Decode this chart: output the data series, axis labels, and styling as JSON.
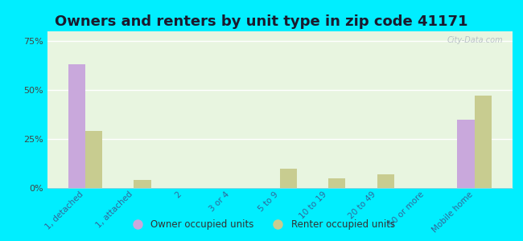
{
  "title": "Owners and renters by unit type in zip code 41171",
  "categories": [
    "1, detached",
    "1, attached",
    "2",
    "3 or 4",
    "5 to 9",
    "10 to 19",
    "20 to 49",
    "50 or more",
    "Mobile home"
  ],
  "owner_values": [
    63,
    0,
    0,
    0,
    0,
    0,
    0,
    0,
    35
  ],
  "renter_values": [
    29,
    4,
    0,
    0,
    10,
    5,
    7,
    0,
    47
  ],
  "owner_color": "#c9a8dc",
  "renter_color": "#c8cc90",
  "background_outer": "#00eeff",
  "background_plot_top": "#e8f5e0",
  "background_plot_bottom": "#f0f8e8",
  "ylim": [
    0,
    80
  ],
  "yticks": [
    0,
    25,
    50,
    75
  ],
  "ytick_labels": [
    "0%",
    "25%",
    "50%",
    "75%"
  ],
  "watermark": "City-Data.com",
  "legend_owner": "Owner occupied units",
  "legend_renter": "Renter occupied units",
  "bar_width": 0.35,
  "title_fontsize": 13,
  "title_color": "#1a1a2e"
}
